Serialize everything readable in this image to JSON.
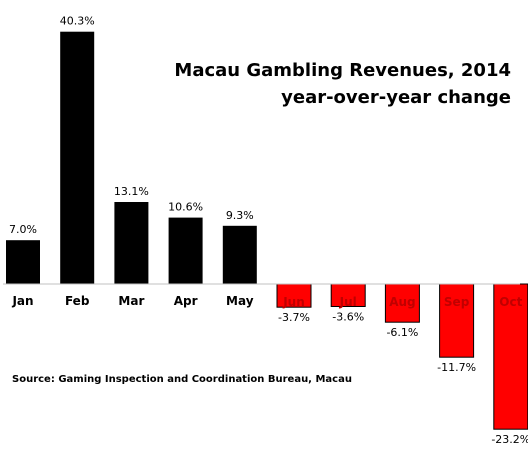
{
  "chart_data": {
    "type": "bar",
    "title": [
      "Macau Gambling Revenues, 2014",
      "year-over-year change"
    ],
    "source": "Source: Gaming Inspection and Coordination Bureau, Macau",
    "categories": [
      "Jan",
      "Feb",
      "Mar",
      "Apr",
      "May",
      "Jun",
      "Jul",
      "Aug",
      "Sep",
      "Oct"
    ],
    "values": [
      7.0,
      40.3,
      13.1,
      10.6,
      9.3,
      -3.7,
      -3.6,
      -6.1,
      -11.7,
      -23.2
    ],
    "value_labels": [
      "7.0%",
      "40.3%",
      "13.1%",
      "10.6%",
      "9.3%",
      "-3.7%",
      "-3.6%",
      "-6.1%",
      "-11.7%",
      "-23.2%"
    ],
    "ylim": [
      -24,
      42
    ],
    "xlabel": "",
    "ylabel": "",
    "grid": false,
    "colors": {
      "positive_bar": "#000000",
      "negative_bar": "#ff0000",
      "positive_label": "#000000",
      "negative_label": "#ff0000",
      "baseline": "#c0c0c0"
    }
  }
}
